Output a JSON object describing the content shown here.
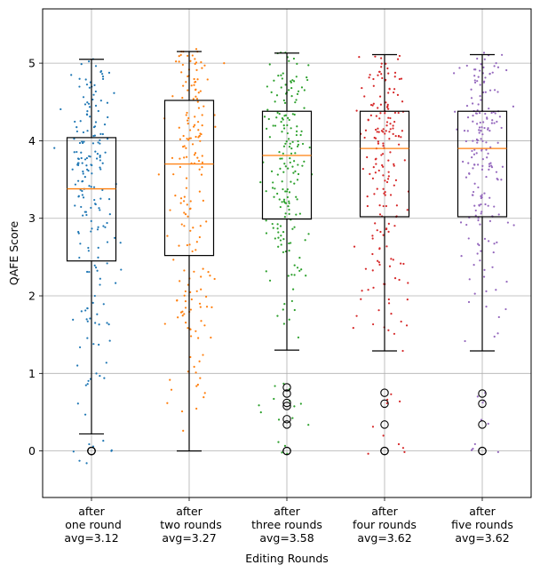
{
  "chart_data": {
    "type": "box",
    "title": "",
    "xlabel": "Editing Rounds",
    "ylabel": "QAFE Score",
    "ylim": [
      -0.6,
      5.7
    ],
    "yticks": [
      0,
      1,
      2,
      3,
      4,
      5
    ],
    "grid": true,
    "series_colors": [
      "#1f77b4",
      "#ff7f0e",
      "#2ca02c",
      "#d62728",
      "#9467bd"
    ],
    "median_color": "#ff7f0e",
    "categories": [
      {
        "name": "one round",
        "label_lines": [
          "after",
          " one round",
          "avg=3.12"
        ],
        "avg": 3.12,
        "q1": 2.45,
        "median": 3.38,
        "q3": 4.04,
        "whisker_low": 0.22,
        "whisker_high": 5.05,
        "outliers": [
          0,
          0,
          0,
          0
        ]
      },
      {
        "name": "two rounds",
        "label_lines": [
          "after",
          " two rounds",
          "avg=3.27"
        ],
        "avg": 3.27,
        "q1": 2.52,
        "median": 3.7,
        "q3": 4.52,
        "whisker_low": 0.0,
        "whisker_high": 5.15,
        "outliers": []
      },
      {
        "name": "three rounds",
        "label_lines": [
          "after",
          "three rounds",
          "avg=3.58"
        ],
        "avg": 3.58,
        "q1": 2.99,
        "median": 3.81,
        "q3": 4.38,
        "whisker_low": 1.3,
        "whisker_high": 5.13,
        "outliers": [
          0.82,
          0.74,
          0.62,
          0.58,
          0.41,
          0.34,
          0.0,
          0.0
        ]
      },
      {
        "name": "four rounds",
        "label_lines": [
          "after",
          "four rounds",
          "avg=3.62"
        ],
        "avg": 3.62,
        "q1": 3.02,
        "median": 3.9,
        "q3": 4.38,
        "whisker_low": 1.29,
        "whisker_high": 5.11,
        "outliers": [
          0.75,
          0.61,
          0.34,
          0.0,
          0.0
        ]
      },
      {
        "name": "five rounds",
        "label_lines": [
          "after",
          "five rounds",
          "avg=3.62"
        ],
        "avg": 3.62,
        "q1": 3.02,
        "median": 3.9,
        "q3": 4.38,
        "whisker_low": 1.29,
        "whisker_high": 5.11,
        "outliers": [
          0.74,
          0.61,
          0.34,
          0.0,
          0.0
        ]
      }
    ],
    "jitter_points_per_category": 190
  }
}
